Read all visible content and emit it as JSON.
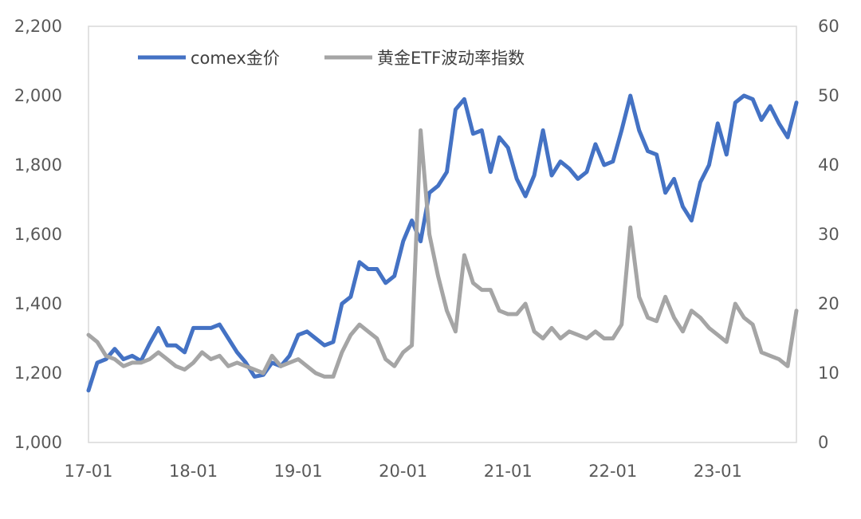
{
  "chart_data": {
    "type": "line",
    "x_ticks": [
      "17-01",
      "18-01",
      "19-01",
      "20-01",
      "21-01",
      "22-01",
      "23-01"
    ],
    "x_range": [
      "2017-01",
      "2023-10"
    ],
    "y_left": {
      "min": 1000,
      "max": 2200,
      "ticks": [
        "1,000",
        "1,200",
        "1,400",
        "1,600",
        "1,800",
        "2,000",
        "2,200"
      ]
    },
    "y_right": {
      "min": 0,
      "max": 60,
      "ticks": [
        "0",
        "10",
        "20",
        "30",
        "40",
        "50",
        "60"
      ]
    },
    "grid": false,
    "legend_position": "top",
    "series": [
      {
        "name": "comex金价",
        "axis": "left",
        "color": "#4472C4",
        "points": [
          [
            "2017-01",
            1150
          ],
          [
            "2017-02",
            1230
          ],
          [
            "2017-03",
            1240
          ],
          [
            "2017-04",
            1270
          ],
          [
            "2017-05",
            1240
          ],
          [
            "2017-06",
            1250
          ],
          [
            "2017-07",
            1235
          ],
          [
            "2017-08",
            1285
          ],
          [
            "2017-09",
            1330
          ],
          [
            "2017-10",
            1280
          ],
          [
            "2017-11",
            1280
          ],
          [
            "2017-12",
            1260
          ],
          [
            "2018-01",
            1330
          ],
          [
            "2018-02",
            1330
          ],
          [
            "2018-03",
            1330
          ],
          [
            "2018-04",
            1340
          ],
          [
            "2018-05",
            1300
          ],
          [
            "2018-06",
            1260
          ],
          [
            "2018-07",
            1230
          ],
          [
            "2018-08",
            1190
          ],
          [
            "2018-09",
            1195
          ],
          [
            "2018-10",
            1230
          ],
          [
            "2018-11",
            1220
          ],
          [
            "2018-12",
            1250
          ],
          [
            "2019-01",
            1310
          ],
          [
            "2019-02",
            1320
          ],
          [
            "2019-03",
            1300
          ],
          [
            "2019-04",
            1280
          ],
          [
            "2019-05",
            1290
          ],
          [
            "2019-06",
            1400
          ],
          [
            "2019-07",
            1420
          ],
          [
            "2019-08",
            1520
          ],
          [
            "2019-09",
            1500
          ],
          [
            "2019-10",
            1500
          ],
          [
            "2019-11",
            1460
          ],
          [
            "2019-12",
            1480
          ],
          [
            "2020-01",
            1580
          ],
          [
            "2020-02",
            1640
          ],
          [
            "2020-03",
            1580
          ],
          [
            "2020-04",
            1720
          ],
          [
            "2020-05",
            1740
          ],
          [
            "2020-06",
            1780
          ],
          [
            "2020-07",
            1960
          ],
          [
            "2020-08",
            1990
          ],
          [
            "2020-09",
            1890
          ],
          [
            "2020-10",
            1900
          ],
          [
            "2020-11",
            1780
          ],
          [
            "2020-12",
            1880
          ],
          [
            "2021-01",
            1850
          ],
          [
            "2021-02",
            1760
          ],
          [
            "2021-03",
            1710
          ],
          [
            "2021-04",
            1770
          ],
          [
            "2021-05",
            1900
          ],
          [
            "2021-06",
            1770
          ],
          [
            "2021-07",
            1810
          ],
          [
            "2021-08",
            1790
          ],
          [
            "2021-09",
            1760
          ],
          [
            "2021-10",
            1780
          ],
          [
            "2021-11",
            1860
          ],
          [
            "2021-12",
            1800
          ],
          [
            "2022-01",
            1810
          ],
          [
            "2022-02",
            1900
          ],
          [
            "2022-03",
            2000
          ],
          [
            "2022-04",
            1900
          ],
          [
            "2022-05",
            1840
          ],
          [
            "2022-06",
            1830
          ],
          [
            "2022-07",
            1720
          ],
          [
            "2022-08",
            1760
          ],
          [
            "2022-09",
            1680
          ],
          [
            "2022-10",
            1640
          ],
          [
            "2022-11",
            1750
          ],
          [
            "2022-12",
            1800
          ],
          [
            "2023-01",
            1920
          ],
          [
            "2023-02",
            1830
          ],
          [
            "2023-03",
            1980
          ],
          [
            "2023-04",
            2000
          ],
          [
            "2023-05",
            1990
          ],
          [
            "2023-06",
            1930
          ],
          [
            "2023-07",
            1970
          ],
          [
            "2023-08",
            1920
          ],
          [
            "2023-09",
            1880
          ],
          [
            "2023-10",
            1980
          ]
        ]
      },
      {
        "name": "黄金ETF波动率指数",
        "axis": "right",
        "color": "#A5A5A5",
        "points": [
          [
            "2017-01",
            15.5
          ],
          [
            "2017-02",
            14.5
          ],
          [
            "2017-03",
            12.5
          ],
          [
            "2017-04",
            12.0
          ],
          [
            "2017-05",
            11.0
          ],
          [
            "2017-06",
            11.5
          ],
          [
            "2017-07",
            11.5
          ],
          [
            "2017-08",
            12.0
          ],
          [
            "2017-09",
            13.0
          ],
          [
            "2017-10",
            12.0
          ],
          [
            "2017-11",
            11.0
          ],
          [
            "2017-12",
            10.5
          ],
          [
            "2018-01",
            11.5
          ],
          [
            "2018-02",
            13.0
          ],
          [
            "2018-03",
            12.0
          ],
          [
            "2018-04",
            12.5
          ],
          [
            "2018-05",
            11.0
          ],
          [
            "2018-06",
            11.5
          ],
          [
            "2018-07",
            11.0
          ],
          [
            "2018-08",
            10.5
          ],
          [
            "2018-09",
            10.0
          ],
          [
            "2018-10",
            12.5
          ],
          [
            "2018-11",
            11.0
          ],
          [
            "2018-12",
            11.5
          ],
          [
            "2019-01",
            12.0
          ],
          [
            "2019-02",
            11.0
          ],
          [
            "2019-03",
            10.0
          ],
          [
            "2019-04",
            9.5
          ],
          [
            "2019-05",
            9.5
          ],
          [
            "2019-06",
            13.0
          ],
          [
            "2019-07",
            15.5
          ],
          [
            "2019-08",
            17.0
          ],
          [
            "2019-09",
            16.0
          ],
          [
            "2019-10",
            15.0
          ],
          [
            "2019-11",
            12.0
          ],
          [
            "2019-12",
            11.0
          ],
          [
            "2020-01",
            13.0
          ],
          [
            "2020-02",
            14.0
          ],
          [
            "2020-03",
            45.0
          ],
          [
            "2020-04",
            30.0
          ],
          [
            "2020-05",
            24.0
          ],
          [
            "2020-06",
            19.0
          ],
          [
            "2020-07",
            16.0
          ],
          [
            "2020-08",
            27.0
          ],
          [
            "2020-09",
            23.0
          ],
          [
            "2020-10",
            22.0
          ],
          [
            "2020-11",
            22.0
          ],
          [
            "2020-12",
            19.0
          ],
          [
            "2021-01",
            18.5
          ],
          [
            "2021-02",
            18.5
          ],
          [
            "2021-03",
            20.0
          ],
          [
            "2021-04",
            16.0
          ],
          [
            "2021-05",
            15.0
          ],
          [
            "2021-06",
            16.5
          ],
          [
            "2021-07",
            15.0
          ],
          [
            "2021-08",
            16.0
          ],
          [
            "2021-09",
            15.5
          ],
          [
            "2021-10",
            15.0
          ],
          [
            "2021-11",
            16.0
          ],
          [
            "2021-12",
            15.0
          ],
          [
            "2022-01",
            15.0
          ],
          [
            "2022-02",
            17.0
          ],
          [
            "2022-03",
            31.0
          ],
          [
            "2022-04",
            21.0
          ],
          [
            "2022-05",
            18.0
          ],
          [
            "2022-06",
            17.5
          ],
          [
            "2022-07",
            21.0
          ],
          [
            "2022-08",
            18.0
          ],
          [
            "2022-09",
            16.0
          ],
          [
            "2022-10",
            19.0
          ],
          [
            "2022-11",
            18.0
          ],
          [
            "2022-12",
            16.5
          ],
          [
            "2023-01",
            15.5
          ],
          [
            "2023-02",
            14.5
          ],
          [
            "2023-03",
            20.0
          ],
          [
            "2023-04",
            18.0
          ],
          [
            "2023-05",
            17.0
          ],
          [
            "2023-06",
            13.0
          ],
          [
            "2023-07",
            12.5
          ],
          [
            "2023-08",
            12.0
          ],
          [
            "2023-09",
            11.0
          ],
          [
            "2023-10",
            19.0
          ]
        ]
      }
    ]
  }
}
